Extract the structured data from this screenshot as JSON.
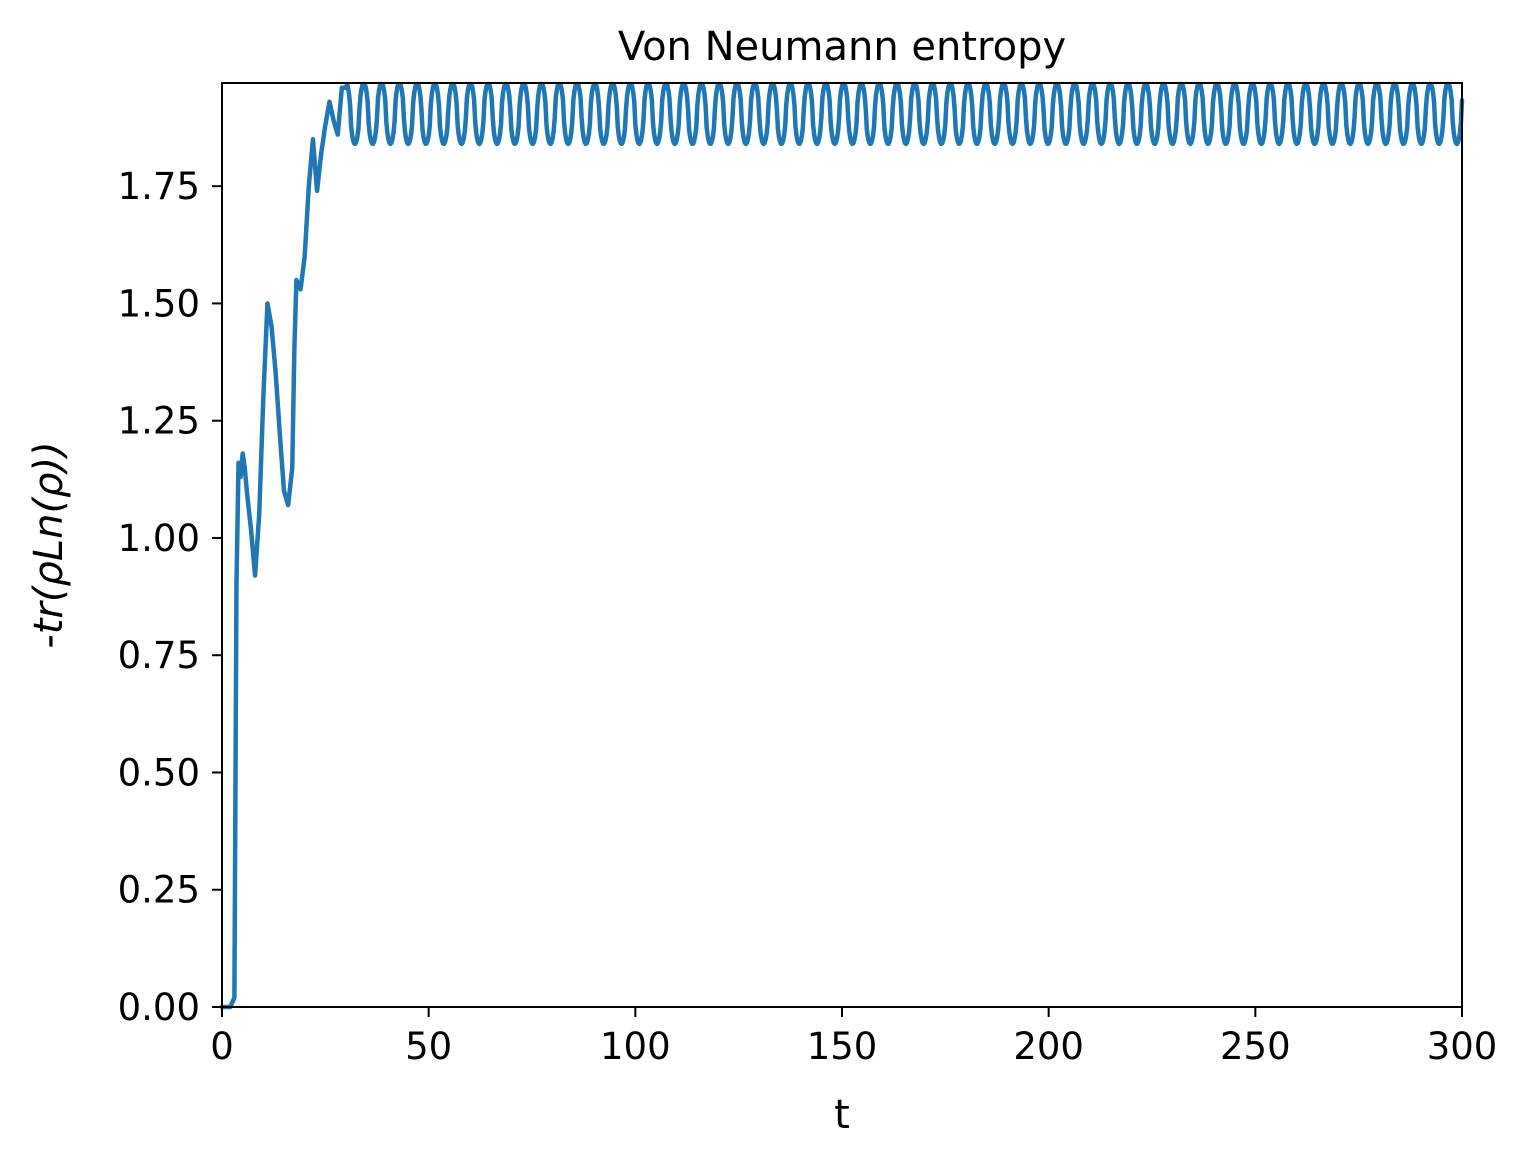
{
  "chart_data": {
    "type": "line",
    "title": "Von Neumann entropy",
    "xlabel": "t",
    "ylabel": "-tr(ρLn(ρ))",
    "xlim": [
      0,
      300
    ],
    "ylim": [
      0,
      1.97
    ],
    "x_ticks": [
      0,
      50,
      100,
      150,
      200,
      250,
      300
    ],
    "x_tick_labels": [
      "0",
      "50",
      "100",
      "150",
      "200",
      "250",
      "300"
    ],
    "y_ticks": [
      0,
      0.25,
      0.5,
      0.75,
      1.0,
      1.25,
      1.5,
      1.75
    ],
    "y_tick_labels": [
      "0.00",
      "0.25",
      "0.50",
      "0.75",
      "1.00",
      "1.25",
      "1.50",
      "1.75"
    ],
    "grid": false,
    "series": [
      {
        "color": "#1f77b4",
        "x": [
          0,
          2,
          3,
          3.5,
          4,
          4.5,
          5,
          5.5,
          6,
          7,
          8,
          9,
          10,
          11,
          12,
          13,
          14,
          15,
          16,
          17,
          17.5,
          18,
          19,
          20,
          21,
          22,
          23,
          24,
          25,
          26,
          27,
          28,
          29,
          30
        ],
        "y": [
          0.0,
          0.0,
          0.02,
          0.9,
          1.16,
          1.13,
          1.18,
          1.15,
          1.1,
          1.02,
          0.92,
          1.05,
          1.3,
          1.5,
          1.45,
          1.35,
          1.22,
          1.1,
          1.07,
          1.15,
          1.4,
          1.55,
          1.53,
          1.6,
          1.75,
          1.85,
          1.74,
          1.82,
          1.88,
          1.93,
          1.89,
          1.86,
          1.96,
          1.96
        ],
        "oscillation": {
          "t_start": 30,
          "t_end": 300,
          "period": 4.3,
          "min": 1.84,
          "max": 1.97
        }
      }
    ]
  }
}
